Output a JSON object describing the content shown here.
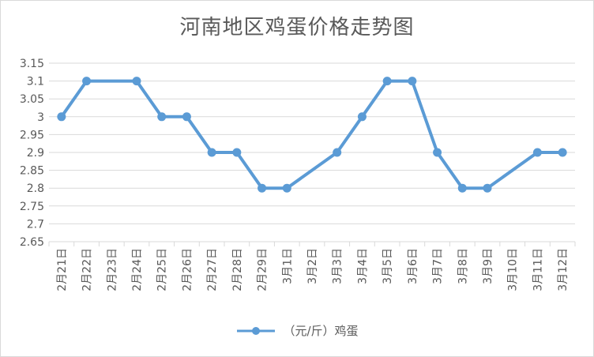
{
  "chart_data": {
    "type": "line",
    "title": "河南地区鸡蛋价格走势图",
    "xlabel": "",
    "ylabel": "",
    "categories": [
      "2月21日",
      "2月22日",
      "2月23日",
      "2月24日",
      "2月25日",
      "2月26日",
      "2月27日",
      "2月28日",
      "2月29日",
      "3月1日",
      "3月2日",
      "3月3日",
      "3月4日",
      "3月5日",
      "3月6日",
      "3月7日",
      "3月8日",
      "3月9日",
      "3月10日",
      "3月11日",
      "3月12日"
    ],
    "series": [
      {
        "name": "（元/斤）鸡蛋",
        "color": "#5b9bd5",
        "values": [
          3.0,
          3.1,
          3.1,
          3.1,
          3.0,
          3.0,
          2.9,
          2.9,
          2.8,
          2.8,
          null,
          2.9,
          3.0,
          3.1,
          3.1,
          2.9,
          2.8,
          2.8,
          null,
          2.9,
          2.9
        ],
        "markers": [
          true,
          true,
          false,
          true,
          true,
          true,
          true,
          true,
          true,
          true,
          false,
          true,
          true,
          true,
          true,
          true,
          true,
          true,
          false,
          true,
          true
        ]
      }
    ],
    "ylim": [
      2.65,
      3.15
    ],
    "ytick_step": 0.05,
    "ytick_labels": [
      "2.65",
      "2.7",
      "2.75",
      "2.8",
      "2.85",
      "2.9",
      "2.95",
      "3",
      "3.05",
      "3.1",
      "3.15"
    ],
    "grid": true,
    "legend_position": "bottom"
  }
}
